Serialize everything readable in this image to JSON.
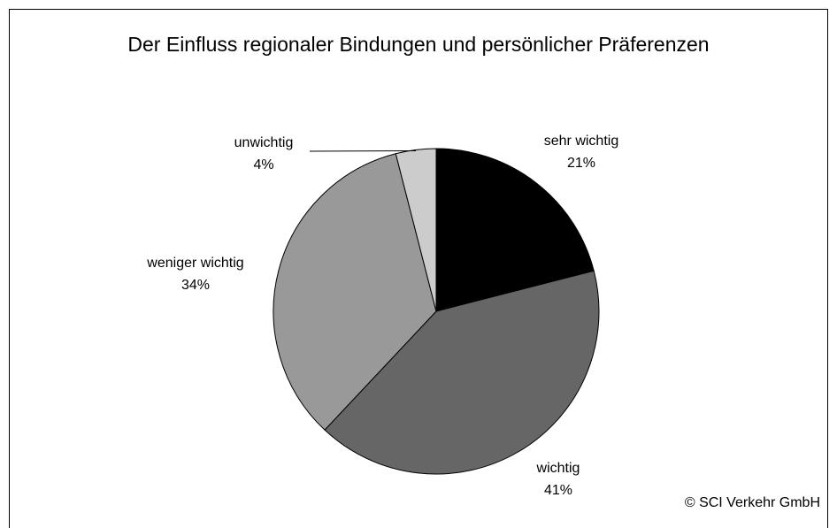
{
  "chart_data": {
    "type": "pie",
    "title": "Der Einfluss regionaler Bindungen und persönlicher Präferenzen",
    "categories": [
      "sehr wichtig",
      "wichtig",
      "weniger wichtig",
      "unwichtig"
    ],
    "values": [
      21,
      41,
      34,
      4
    ],
    "value_labels": [
      "21%",
      "41%",
      "34%",
      "4%"
    ],
    "colors": [
      "#000000",
      "#666666",
      "#999999",
      "#cccccc"
    ],
    "copyright": "© SCI Verkehr GmbH"
  }
}
